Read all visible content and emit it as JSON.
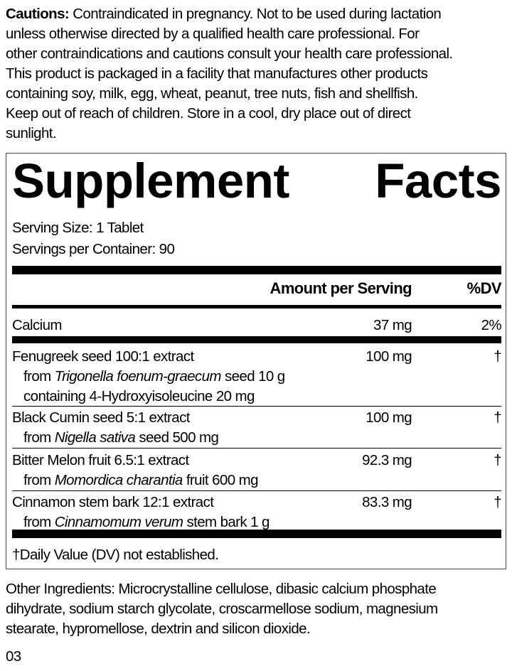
{
  "cautions": {
    "label": "Cautions:",
    "lines": [
      " Contraindicated in pregnancy. Not to be used during lactation",
      "unless otherwise directed by a qualified health care professional. For",
      "other contraindications and cautions consult your health care professional.",
      "This product is packaged in a facility that manufactures other products",
      "containing soy, milk, egg, wheat, peanut, tree nuts, fish and shellfish.",
      "Keep out of reach of children. Store in a cool, dry place out of direct",
      "sunlight."
    ]
  },
  "facts": {
    "title_1": "Supplement",
    "title_2": "Facts",
    "serving_size": "Serving Size: 1 Tablet",
    "servings_per_container": "Servings per Container: 90",
    "header_amount": "Amount per Serving",
    "header_dv": "%DV",
    "calcium": {
      "name": "Calcium",
      "amount": "37 mg",
      "dv": "2%"
    },
    "items": [
      {
        "name": "Fenugreek seed 100:1 extract",
        "from_pre": "from ",
        "species": "Trigonella foenum-graecum",
        "from_post": " seed 10 g",
        "extra": "containing 4-Hydroxyisoleucine 20 mg",
        "amount": "100 mg",
        "dv": "†"
      },
      {
        "name": "Black Cumin seed 5:1 extract",
        "from_pre": "from ",
        "species": "Nigella sativa",
        "from_post": " seed 500 mg",
        "amount": "100 mg",
        "dv": "†"
      },
      {
        "name": "Bitter Melon fruit 6.5:1 extract",
        "from_pre": "from ",
        "species": "Momordica charantia",
        "from_post": " fruit 600 mg",
        "amount": "92.3 mg",
        "dv": "†"
      },
      {
        "name": "Cinnamon stem bark 12:1 extract",
        "from_pre": "from ",
        "species": "Cinnamomum verum",
        "from_post": " stem bark 1 g",
        "amount": "83.3 mg",
        "dv": "†"
      }
    ],
    "footnote": "†Daily Value (DV) not established."
  },
  "other_ingredients": [
    "Other Ingredients: Microcrystalline cellulose, dibasic calcium phosphate",
    "dihydrate, sodium starch glycolate, croscarmellose sodium, magnesium",
    "stearate, hypromellose, dextrin and silicon dioxide."
  ],
  "code": "03"
}
